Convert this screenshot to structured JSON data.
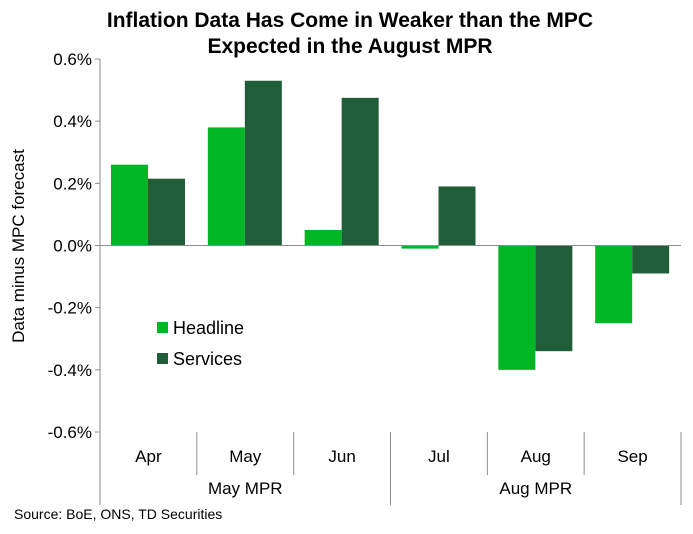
{
  "chart_data": {
    "type": "bar",
    "title_lines": [
      "Inflation Data Has Come in Weaker than the MPC",
      "Expected in the August MPR"
    ],
    "ylabel": "Data minus MPC forecast",
    "xlabel": "",
    "categories": [
      "Apr",
      "May",
      "Jun",
      "Jul",
      "Aug",
      "Sep"
    ],
    "groups": [
      {
        "label": "May MPR",
        "categories": [
          "Apr",
          "May",
          "Jun"
        ]
      },
      {
        "label": "Aug MPR",
        "categories": [
          "Jul",
          "Aug",
          "Sep"
        ]
      }
    ],
    "series": [
      {
        "name": "Headline",
        "color": "#00B624",
        "values": [
          0.26,
          0.38,
          0.05,
          -0.01,
          -0.4,
          -0.25
        ]
      },
      {
        "name": "Services",
        "color": "#1F5E38",
        "values": [
          0.215,
          0.53,
          0.475,
          0.19,
          -0.34,
          -0.09
        ]
      }
    ],
    "ylim": [
      -0.6,
      0.6
    ],
    "yticks": [
      0.6,
      0.4,
      0.2,
      0.0,
      -0.2,
      -0.4,
      -0.6
    ],
    "ytick_labels": [
      "0.6%",
      "0.4%",
      "0.2%",
      "0.0%",
      "-0.2%",
      "-0.4%",
      "-0.6%"
    ],
    "legend": "left-middle",
    "grid": false
  },
  "source": "Source: BoE, ONS, TD Securities"
}
